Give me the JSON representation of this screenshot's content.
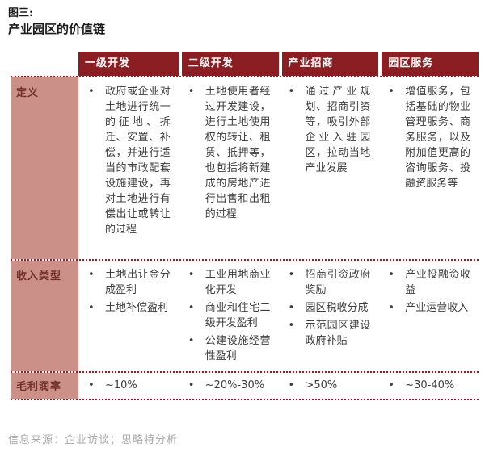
{
  "figure": {
    "label": "图三:",
    "title": "产业园区的价值链"
  },
  "table": {
    "columns": [
      "一级开发",
      "二级开发",
      "产业招商",
      "园区服务"
    ],
    "rows": [
      {
        "label": "定义",
        "cells": [
          [
            "政府或企业对土地进行统一的征地、拆迁、安置、补偿，并进行适当的市政配套设施建设，再对土地进行有偿出让或转让的过程"
          ],
          [
            "土地使用者经过开发建设，进行土地使用权的转让、租赁、抵押等，也包括将新建成的房地产进行出售和出租的过程"
          ],
          [
            "通过产业规划、招商引资等，吸引外部企业入驻园区，拉动当地产业发展"
          ],
          [
            "增值服务，包括基础的物业管理服务、商务服务，以及附加值更高的咨询服务、投融资服务等"
          ]
        ]
      },
      {
        "label": "收入类型",
        "cells": [
          [
            "土地出让金分成盈利",
            "土地补偿盈利"
          ],
          [
            "工业用地商业化开发",
            "商业和住宅二级开发盈利",
            "公建设施经营性盈利"
          ],
          [
            "招商引资政府奖励",
            "园区税收分成",
            "示范园区建设政府补贴"
          ],
          [
            "产业投融资收益",
            "产业运营收入"
          ]
        ]
      },
      {
        "label": "毛利润率",
        "cells": [
          [
            "~10%"
          ],
          [
            "~20%-30%"
          ],
          [
            ">50%"
          ],
          [
            "~30-40%"
          ]
        ]
      }
    ]
  },
  "footer": {
    "source": "信息来源：企业访谈；思略特分析"
  },
  "colors": {
    "header_bg": "#8B1E23",
    "header_text": "#FFFFFF",
    "row_label_bg": "#CB9189",
    "row_label_text": "#73302A",
    "dotted_border": "#B5121B",
    "body_text": "#3D3D3D",
    "footer_text": "#A8A8A8"
  }
}
